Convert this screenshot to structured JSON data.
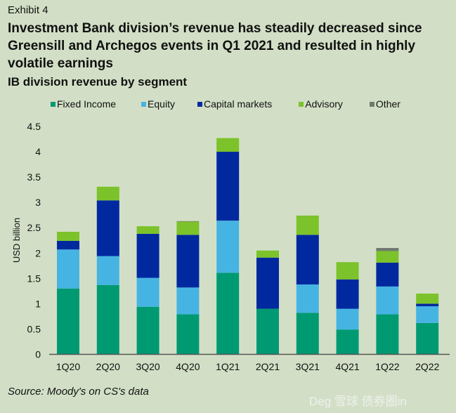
{
  "exhibit": "Exhibit 4",
  "watermark": "Deg 雪球 债券圈in",
  "chart_data": {
    "type": "bar",
    "stacked": true,
    "title": "Investment Bank division’s revenue has steadily decreased since Greensill and Archegos events in Q1 2021 and resulted in highly volatile earnings",
    "subtitle": "IB division revenue by segment",
    "xlabel": "",
    "ylabel": "USD billion",
    "ylim": [
      0,
      4.5
    ],
    "yticks": [
      "0",
      "0.5",
      "1",
      "1.5",
      "2",
      "2.5",
      "3",
      "3.5",
      "4",
      "4.5"
    ],
    "grid": false,
    "legend": "top",
    "categories": [
      "1Q20",
      "2Q20",
      "3Q20",
      "4Q20",
      "1Q21",
      "2Q21",
      "3Q21",
      "4Q21",
      "1Q22",
      "2Q22"
    ],
    "series": [
      {
        "name": "Fixed Income",
        "color": "#009a72",
        "values": [
          1.3,
          1.37,
          0.94,
          0.79,
          1.61,
          0.9,
          0.82,
          0.49,
          0.79,
          0.62
        ]
      },
      {
        "name": "Equity",
        "color": "#46b4e2",
        "values": [
          0.77,
          0.57,
          0.57,
          0.53,
          1.03,
          0.0,
          0.56,
          0.41,
          0.55,
          0.33
        ]
      },
      {
        "name": "Capital markets",
        "color": "#0029a0",
        "values": [
          0.17,
          1.1,
          0.87,
          1.04,
          1.36,
          1.01,
          0.98,
          0.58,
          0.47,
          0.05
        ]
      },
      {
        "name": "Advisory",
        "color": "#7cc22a",
        "values": [
          0.18,
          0.27,
          0.15,
          0.26,
          0.27,
          0.14,
          0.38,
          0.34,
          0.23,
          0.2
        ]
      },
      {
        "name": "Other",
        "color": "#6f786f",
        "values": [
          0,
          0,
          0,
          0.01,
          0,
          0,
          0,
          0,
          0.06,
          0
        ]
      }
    ],
    "source": "Source: Moody's on CS's data"
  }
}
